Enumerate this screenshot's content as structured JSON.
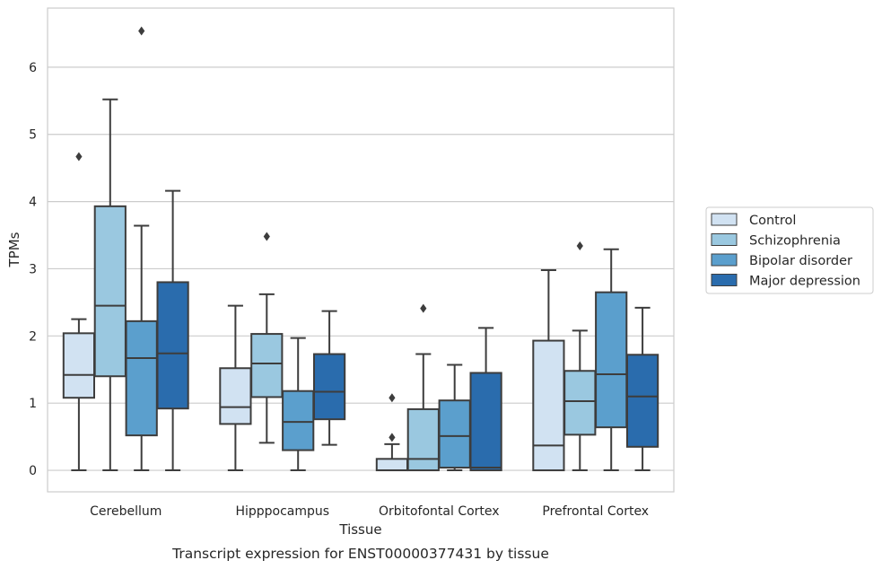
{
  "chart_data": {
    "type": "box",
    "title": "",
    "caption": "Transcript expression for ENST00000377431 by tissue",
    "xlabel": "Tissue",
    "ylabel": "TPMs",
    "ylim": [
      -0.32,
      6.88
    ],
    "yticks": [
      "0",
      "1",
      "2",
      "3",
      "4",
      "5",
      "6"
    ],
    "grid": "horizontal",
    "legend_position": "right",
    "categories": [
      "Cerebellum",
      "Hipppocampus",
      "Orbitofontal Cortex",
      "Prefrontal Cortex"
    ],
    "series": [
      {
        "name": "Control",
        "color": "#d1e2f2",
        "boxes": [
          {
            "min": 0.0,
            "q1": 1.08,
            "median": 1.42,
            "q3": 2.04,
            "max": 2.25,
            "outliers": [
              4.67
            ]
          },
          {
            "min": 0.0,
            "q1": 0.69,
            "median": 0.94,
            "q3": 1.52,
            "max": 2.45,
            "outliers": []
          },
          {
            "min": 0.0,
            "q1": 0.0,
            "median": 0.0,
            "q3": 0.17,
            "max": 0.39,
            "outliers": [
              1.08,
              0.49
            ]
          },
          {
            "min": 0.0,
            "q1": 0.0,
            "median": 0.37,
            "q3": 1.93,
            "max": 2.98,
            "outliers": []
          }
        ]
      },
      {
        "name": "Schizophrenia",
        "color": "#9ac8e0",
        "boxes": [
          {
            "min": 0.0,
            "q1": 1.4,
            "median": 2.45,
            "q3": 3.93,
            "max": 5.52,
            "outliers": []
          },
          {
            "min": 0.41,
            "q1": 1.09,
            "median": 1.59,
            "q3": 2.03,
            "max": 2.62,
            "outliers": [
              3.48
            ]
          },
          {
            "min": 0.0,
            "q1": 0.0,
            "median": 0.17,
            "q3": 0.91,
            "max": 1.73,
            "outliers": [
              2.41
            ]
          },
          {
            "min": 0.0,
            "q1": 0.53,
            "median": 1.03,
            "q3": 1.48,
            "max": 2.08,
            "outliers": [
              3.34
            ]
          }
        ]
      },
      {
        "name": "Bipolar disorder",
        "color": "#5b9fcd",
        "boxes": [
          {
            "min": 0.0,
            "q1": 0.52,
            "median": 1.67,
            "q3": 2.22,
            "max": 3.64,
            "outliers": [
              6.54
            ]
          },
          {
            "min": 0.0,
            "q1": 0.3,
            "median": 0.72,
            "q3": 1.18,
            "max": 1.97,
            "outliers": []
          },
          {
            "min": 0.0,
            "q1": 0.04,
            "median": 0.51,
            "q3": 1.04,
            "max": 1.57,
            "outliers": []
          },
          {
            "min": 0.0,
            "q1": 0.64,
            "median": 1.43,
            "q3": 2.65,
            "max": 3.29,
            "outliers": []
          }
        ]
      },
      {
        "name": "Major depression",
        "color": "#2a6cad",
        "boxes": [
          {
            "min": 0.0,
            "q1": 0.92,
            "median": 1.74,
            "q3": 2.8,
            "max": 4.16,
            "outliers": []
          },
          {
            "min": 0.38,
            "q1": 0.76,
            "median": 1.17,
            "q3": 1.73,
            "max": 2.37,
            "outliers": []
          },
          {
            "min": 0.0,
            "q1": 0.0,
            "median": 0.04,
            "q3": 1.45,
            "max": 2.12,
            "outliers": []
          },
          {
            "min": 0.0,
            "q1": 0.35,
            "median": 1.1,
            "q3": 1.72,
            "max": 2.42,
            "outliers": []
          }
        ]
      }
    ]
  }
}
